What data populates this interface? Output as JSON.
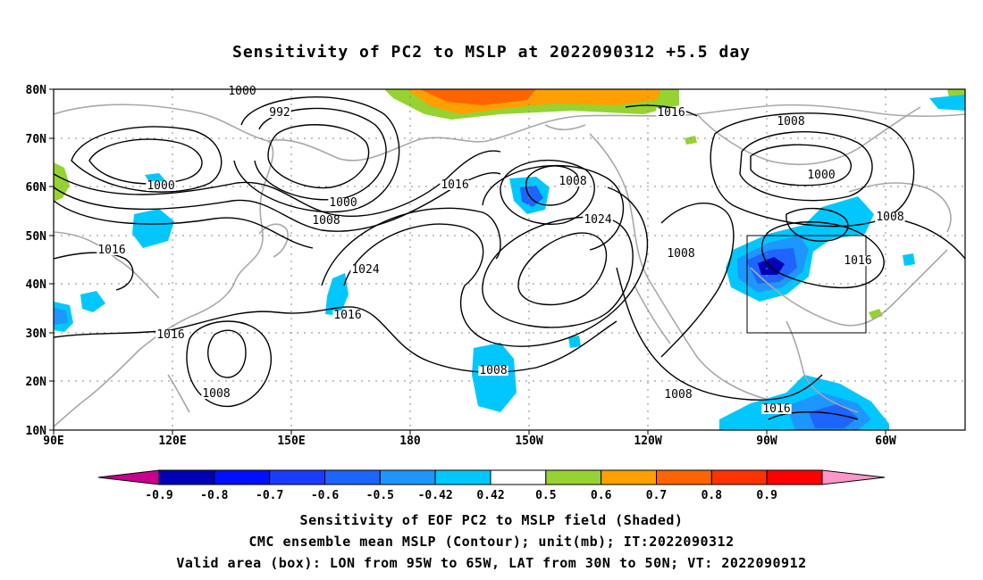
{
  "title": "Sensitivity of PC2 to MSLP at 2022090312 +5.5 day",
  "lat_labels": [
    "80N",
    "70N",
    "60N",
    "50N",
    "40N",
    "30N",
    "20N",
    "10N"
  ],
  "lon_labels": [
    "90E",
    "120E",
    "150E",
    "180",
    "150W",
    "120W",
    "90W",
    "60W"
  ],
  "contour_labels": [
    {
      "text": "1000"
    },
    {
      "text": "992"
    },
    {
      "text": "1016"
    },
    {
      "text": "1008"
    },
    {
      "text": "1000"
    },
    {
      "text": "1000"
    },
    {
      "text": "1000"
    },
    {
      "text": "1008"
    },
    {
      "text": "1016"
    },
    {
      "text": "1008"
    },
    {
      "text": "1024"
    },
    {
      "text": "1008"
    },
    {
      "text": "1024"
    },
    {
      "text": "1016"
    },
    {
      "text": "1016"
    },
    {
      "text": "1016"
    },
    {
      "text": "1016"
    },
    {
      "text": "1008"
    },
    {
      "text": "1008"
    },
    {
      "text": "1008"
    },
    {
      "text": "1016"
    },
    {
      "text": "1008"
    }
  ],
  "colorbar": {
    "ticks": [
      "-0.9",
      "-0.8",
      "-0.7",
      "-0.6",
      "-0.5",
      "-0.42",
      "0.42",
      "0.5",
      "0.6",
      "0.7",
      "0.8",
      "0.9"
    ],
    "colors": [
      "#0000b4",
      "#0010ff",
      "#1a3cff",
      "#1e64ff",
      "#1e96ff",
      "#00c8ff",
      "#ffffff",
      "#96d232",
      "#ffa000",
      "#ff6400",
      "#ff3200",
      "#ff0000"
    ],
    "under_color": "#c8008c",
    "over_color": "#ff96c8"
  },
  "valid_box": {
    "lon_from": "95W",
    "lon_to": "65W",
    "lat_from": "30N",
    "lat_to": "50N"
  },
  "captions": [
    "Sensitivity of EOF PC2 to MSLP field (Shaded)",
    "CMC ensemble mean MSLP (Contour); unit(mb); IT:2022090312",
    "Valid area (box): LON from 95W to 65W, LAT from 30N to 50N; VT: 2022090912"
  ]
}
